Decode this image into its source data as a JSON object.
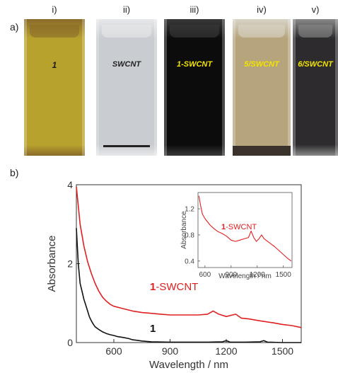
{
  "panel_a": {
    "label": "a)",
    "vials": [
      {
        "roman": "i)",
        "num": "1",
        "rest": "",
        "fill": "#b8a22e",
        "top": "#8a6a2a",
        "numColor": "#1a1a1a",
        "restColor": "#1a1a1a"
      },
      {
        "roman": "ii)",
        "num": "",
        "rest": "SWCNT",
        "fill": "#c9ccd0",
        "top": "#e6e8ea",
        "numColor": "#222222",
        "restColor": "#222222"
      },
      {
        "roman": "iii)",
        "num": "1",
        "rest": "-SWCNT",
        "fill": "#0c0c0c",
        "top": "#3a3a3a",
        "numColor": "#f2e400",
        "restColor": "#f2e400"
      },
      {
        "roman": "iv)",
        "num": "5",
        "rest": "/SWCNT",
        "fill": "#b6a47c",
        "top": "#d8d4c8",
        "numColor": "#f2e400",
        "restColor": "#f2e400"
      },
      {
        "roman": "v)",
        "num": "6",
        "rest": "/SWCNT",
        "fill": "#2d2b2e",
        "top": "#8a8a8a",
        "numColor": "#f2e400",
        "restColor": "#f2e400"
      }
    ]
  },
  "panel_b": {
    "label": "b)"
  },
  "chart_data": [
    {
      "type": "line",
      "xlabel": "Wavelength / nm",
      "ylabel": "Absorbance",
      "xlim": [
        400,
        1600
      ],
      "ylim": [
        0,
        4
      ],
      "xticks": [
        "600",
        "900",
        "1200",
        "1500"
      ],
      "yticks": [
        "0",
        "2",
        "4"
      ],
      "series": [
        {
          "name": "1-SWCNT",
          "color": "#e02020",
          "x": [
            400,
            420,
            440,
            460,
            480,
            500,
            520,
            540,
            560,
            580,
            600,
            650,
            700,
            750,
            800,
            850,
            900,
            950,
            1000,
            1050,
            1100,
            1130,
            1160,
            1200,
            1250,
            1280,
            1320,
            1380,
            1450,
            1500,
            1550,
            1600
          ],
          "y": [
            3.95,
            3.0,
            2.45,
            2.05,
            1.75,
            1.5,
            1.3,
            1.15,
            1.05,
            0.97,
            0.92,
            0.86,
            0.8,
            0.76,
            0.74,
            0.72,
            0.7,
            0.7,
            0.7,
            0.7,
            0.72,
            0.8,
            0.72,
            0.66,
            0.72,
            0.62,
            0.6,
            0.55,
            0.5,
            0.46,
            0.43,
            0.38
          ]
        },
        {
          "name": "1",
          "color": "#111111",
          "x": [
            400,
            410,
            420,
            430,
            440,
            450,
            460,
            470,
            480,
            490,
            500,
            520,
            540,
            560,
            580,
            600,
            620,
            650,
            680,
            700,
            720,
            750,
            800,
            900,
            1000,
            1100,
            1180,
            1200,
            1220,
            1300,
            1380,
            1400,
            1420,
            1500,
            1600
          ],
          "y": [
            2.9,
            2.0,
            1.5,
            1.3,
            1.1,
            0.95,
            0.8,
            0.65,
            0.55,
            0.47,
            0.4,
            0.33,
            0.27,
            0.23,
            0.2,
            0.18,
            0.15,
            0.13,
            0.1,
            0.07,
            0.06,
            0.04,
            0.02,
            0.01,
            0.01,
            0.01,
            0.02,
            0.05,
            0.01,
            0.01,
            0.02,
            0.05,
            0.01,
            0.0,
            0.0
          ]
        }
      ],
      "annotations": [
        {
          "num": "1",
          "rest": "-SWCNT",
          "color": "#e02020"
        },
        {
          "num": "1",
          "rest": "",
          "color": "#111111"
        }
      ]
    },
    {
      "type": "line",
      "xlabel": "Wavelength / nm",
      "ylabel": "Absorbance",
      "xlim": [
        520,
        1600
      ],
      "ylim": [
        0.3,
        1.45
      ],
      "xticks": [
        "600",
        "900",
        "1200",
        "1500"
      ],
      "yticks": [
        "0.4",
        "0.8",
        "1.2"
      ],
      "series": [
        {
          "name": "1-SWCNT",
          "color": "#e02020",
          "x": [
            530,
            550,
            570,
            600,
            630,
            660,
            700,
            750,
            800,
            850,
            900,
            950,
            1000,
            1050,
            1100,
            1130,
            1160,
            1190,
            1220,
            1250,
            1280,
            1320,
            1360,
            1400,
            1450,
            1500,
            1550,
            1590
          ],
          "y": [
            1.4,
            1.25,
            1.12,
            1.05,
            1.0,
            0.95,
            0.9,
            0.85,
            0.82,
            0.78,
            0.72,
            0.7,
            0.72,
            0.74,
            0.76,
            0.86,
            0.76,
            0.7,
            0.74,
            0.8,
            0.74,
            0.7,
            0.66,
            0.62,
            0.56,
            0.5,
            0.44,
            0.4
          ]
        }
      ],
      "annotations": [
        {
          "num": "1",
          "rest": "-SWCNT",
          "color": "#e02020"
        }
      ]
    }
  ]
}
